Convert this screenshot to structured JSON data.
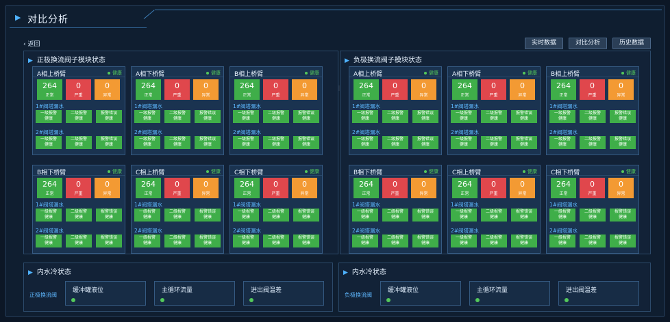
{
  "page_title": "对比分析",
  "back_label": "返回",
  "top_buttons": [
    "实时数据",
    "对比分析",
    "历史数据"
  ],
  "labels": {
    "normal": "正常",
    "severe": "严重",
    "abnormal": "异常",
    "healthy": "健康",
    "group1": "1#阀塔漏水",
    "group2": "2#阀塔漏水",
    "chip1": "一级报警",
    "chip2": "二级报警",
    "chip3": "报警错误"
  },
  "counts": {
    "normal": "264",
    "severe": "0",
    "abnormal": "0"
  },
  "panels": [
    {
      "title": "正极换流阀子模块状态",
      "cards": [
        "A相上桥臂",
        "A相下桥臂",
        "B相上桥臂",
        "B相下桥臂",
        "C相上桥臂",
        "C相下桥臂"
      ]
    },
    {
      "title": "负极换流阀子模块状态",
      "cards": [
        "A相上桥臂",
        "A相下桥臂",
        "B相上桥臂",
        "B相下桥臂",
        "C相上桥臂",
        "C相下桥臂"
      ]
    }
  ],
  "cooling": [
    {
      "title": "内水冷状态",
      "side_label": "正极换流阀",
      "metrics": [
        "缓冲罐液位",
        "主循环流量",
        "进出阀温差"
      ]
    },
    {
      "title": "内水冷状态",
      "side_label": "负极换流阀",
      "metrics": [
        "缓冲罐液位",
        "主循环流量",
        "进出阀温差"
      ]
    }
  ],
  "colors": {
    "normal": "#3fae49",
    "severe": "#e0474c",
    "abnormal": "#f39a33",
    "accent": "#4fb3ff"
  }
}
